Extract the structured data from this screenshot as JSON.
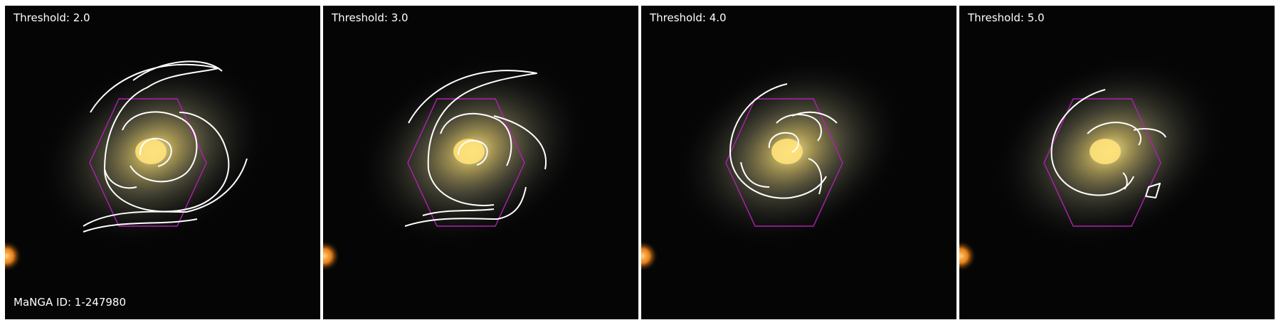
{
  "panels": [
    {
      "threshold_label": "Threshold: 2.0",
      "manga_id_label": "MaNGA ID: 1-247980"
    },
    {
      "threshold_label": "Threshold: 3.0"
    },
    {
      "threshold_label": "Threshold: 4.0"
    },
    {
      "threshold_label": "Threshold: 5.0"
    }
  ],
  "colors": {
    "background": "#050505",
    "galaxy_core": "#ffe27a",
    "galaxy_halo": "#8f8b6a",
    "contour": "#ffffff",
    "ifu_hexagon": "#b020b0",
    "foreground_star": "#ff8a1a"
  }
}
